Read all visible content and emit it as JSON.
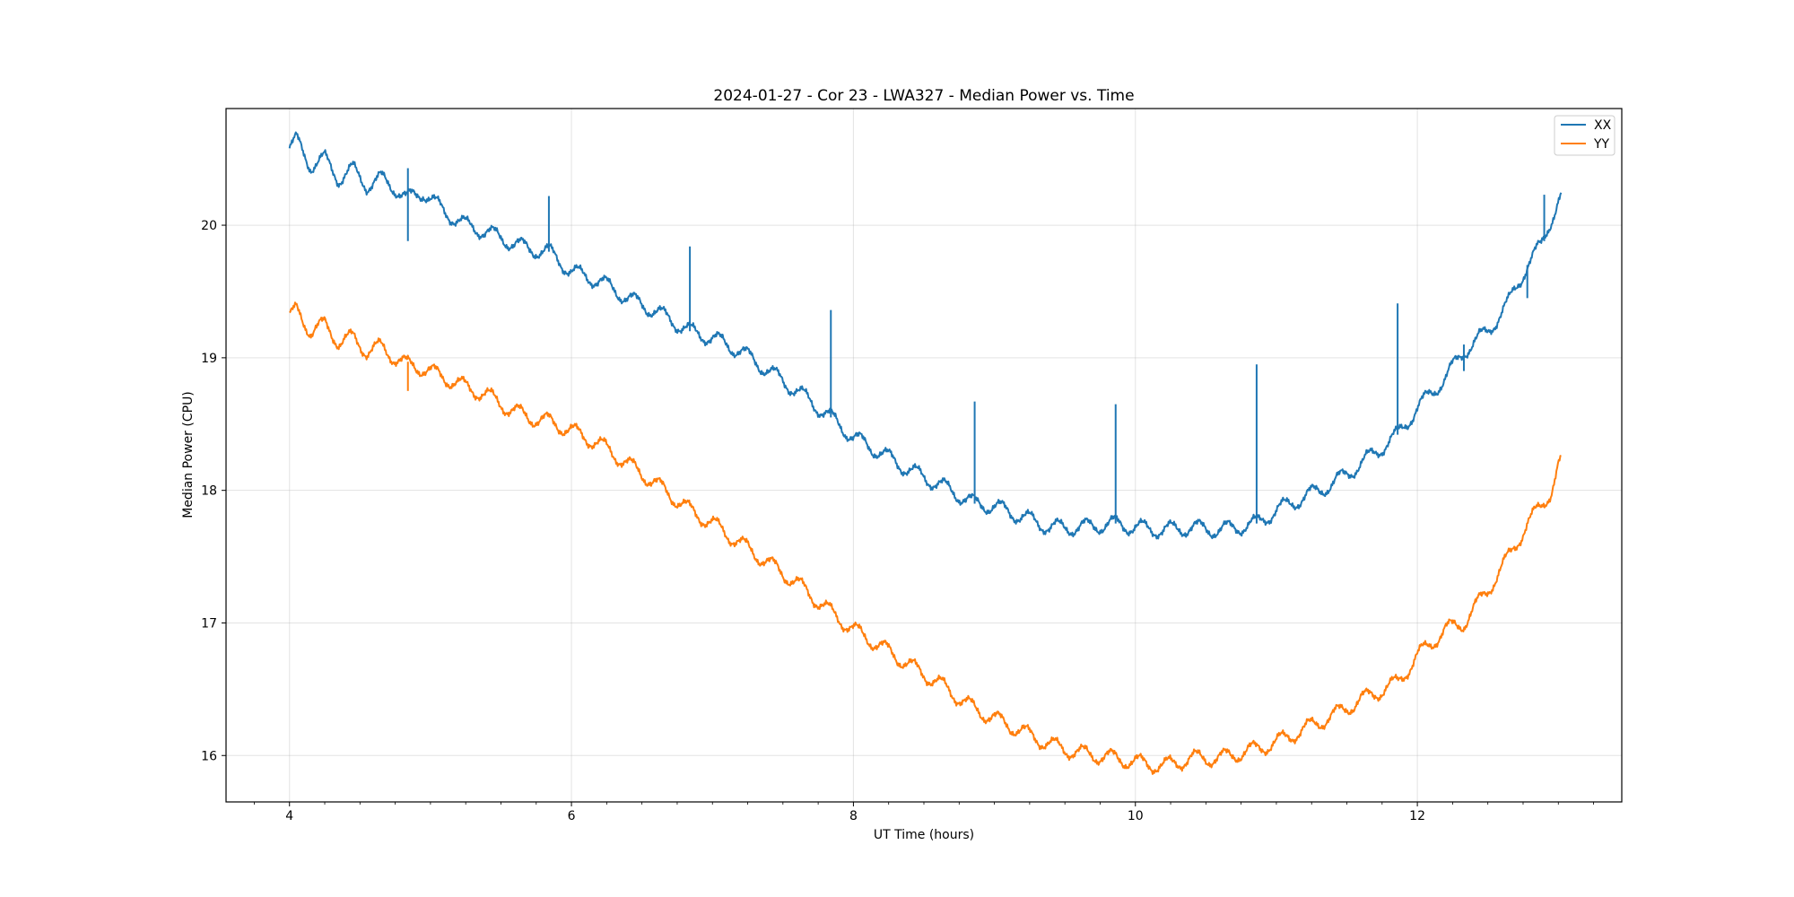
{
  "chart_data": {
    "type": "line",
    "title": "2024-01-27 - Cor 23 - LWA327 - Median Power vs. Time",
    "xlabel": "UT Time (hours)",
    "ylabel": "Median Power (CPU)",
    "xlim": [
      3.55,
      13.45
    ],
    "ylim": [
      15.65,
      20.88
    ],
    "xticks": [
      4,
      6,
      8,
      10,
      12
    ],
    "xtick_labels": [
      "4",
      "6",
      "8",
      "10",
      "12"
    ],
    "yticks": [
      16,
      17,
      18,
      19,
      20
    ],
    "ytick_labels": [
      "16",
      "17",
      "18",
      "19",
      "20"
    ],
    "grid": true,
    "legend_position": "top-right",
    "series": [
      {
        "name": "XX",
        "color": "#1f77b4",
        "x": [
          4.0,
          4.05,
          4.15,
          4.25,
          4.35,
          4.45,
          4.55,
          4.65,
          4.75,
          4.83,
          4.95,
          5.1,
          5.25,
          5.4,
          5.55,
          5.7,
          5.84,
          6.0,
          6.2,
          6.4,
          6.6,
          6.84,
          7.0,
          7.2,
          7.4,
          7.6,
          7.84,
          8.0,
          8.2,
          8.4,
          8.6,
          8.86,
          9.0,
          9.2,
          9.4,
          9.6,
          9.86,
          10.0,
          10.2,
          10.4,
          10.6,
          10.86,
          11.0,
          11.2,
          11.4,
          11.6,
          11.86,
          12.0,
          12.2,
          12.33,
          12.5,
          12.65,
          12.78,
          12.88,
          12.95,
          13.0,
          13.02
        ],
        "y": [
          20.58,
          20.64,
          20.45,
          20.5,
          20.35,
          20.42,
          20.3,
          20.35,
          20.28,
          20.2,
          20.25,
          20.1,
          20.0,
          19.95,
          19.88,
          19.82,
          19.8,
          19.65,
          19.58,
          19.45,
          19.35,
          19.2,
          19.15,
          19.05,
          18.9,
          18.75,
          18.55,
          18.4,
          18.28,
          18.15,
          18.05,
          17.9,
          17.88,
          17.8,
          17.72,
          17.72,
          17.75,
          17.72,
          17.7,
          17.72,
          17.7,
          17.75,
          17.85,
          17.95,
          18.05,
          18.2,
          18.42,
          18.62,
          18.85,
          19.05,
          19.2,
          19.42,
          19.7,
          19.85,
          20.05,
          20.18,
          20.22
        ],
        "spikes": [
          {
            "x": 4.84,
            "y_min": 19.88,
            "y_max": 20.43
          },
          {
            "x": 5.84,
            "y_min": 19.8,
            "y_max": 20.22
          },
          {
            "x": 6.84,
            "y_min": 19.2,
            "y_max": 19.84
          },
          {
            "x": 7.84,
            "y_min": 18.55,
            "y_max": 19.36
          },
          {
            "x": 8.86,
            "y_min": 17.9,
            "y_max": 18.67
          },
          {
            "x": 9.86,
            "y_min": 17.75,
            "y_max": 18.65
          },
          {
            "x": 10.86,
            "y_min": 17.75,
            "y_max": 18.95
          },
          {
            "x": 11.86,
            "y_min": 18.42,
            "y_max": 19.41
          },
          {
            "x": 12.9,
            "y_min": 19.88,
            "y_max": 20.23
          },
          {
            "x": 12.33,
            "y_min": 18.9,
            "y_max": 19.1
          },
          {
            "x": 12.78,
            "y_min": 19.45,
            "y_max": 19.7
          }
        ]
      },
      {
        "name": "YY",
        "color": "#ff7f0e",
        "x": [
          4.0,
          4.05,
          4.15,
          4.25,
          4.35,
          4.45,
          4.55,
          4.65,
          4.75,
          4.83,
          4.95,
          5.1,
          5.25,
          5.4,
          5.55,
          5.7,
          5.84,
          6.0,
          6.2,
          6.4,
          6.6,
          6.84,
          7.0,
          7.2,
          7.4,
          7.6,
          7.84,
          8.0,
          8.2,
          8.4,
          8.6,
          8.86,
          9.0,
          9.2,
          9.4,
          9.6,
          9.86,
          10.0,
          10.2,
          10.4,
          10.6,
          10.86,
          11.0,
          11.2,
          11.4,
          11.6,
          11.86,
          12.0,
          12.2,
          12.33,
          12.5,
          12.65,
          12.78,
          12.88,
          12.95,
          13.0,
          13.02
        ],
        "y": [
          19.3,
          19.36,
          19.2,
          19.25,
          19.12,
          19.15,
          19.05,
          19.08,
          19.0,
          18.95,
          18.92,
          18.85,
          18.78,
          18.72,
          18.62,
          18.55,
          18.52,
          18.45,
          18.35,
          18.2,
          18.05,
          17.85,
          17.75,
          17.6,
          17.45,
          17.3,
          17.08,
          16.95,
          16.82,
          16.68,
          16.55,
          16.35,
          16.28,
          16.18,
          16.08,
          16.02,
          15.98,
          15.95,
          15.92,
          15.98,
          15.98,
          16.05,
          16.1,
          16.2,
          16.3,
          16.42,
          16.55,
          16.75,
          16.95,
          17.0,
          17.25,
          17.5,
          17.75,
          17.88,
          18.0,
          18.18,
          18.22
        ],
        "spikes": [
          {
            "x": 4.84,
            "y_min": 18.75,
            "y_max": 18.97
          }
        ]
      }
    ]
  }
}
